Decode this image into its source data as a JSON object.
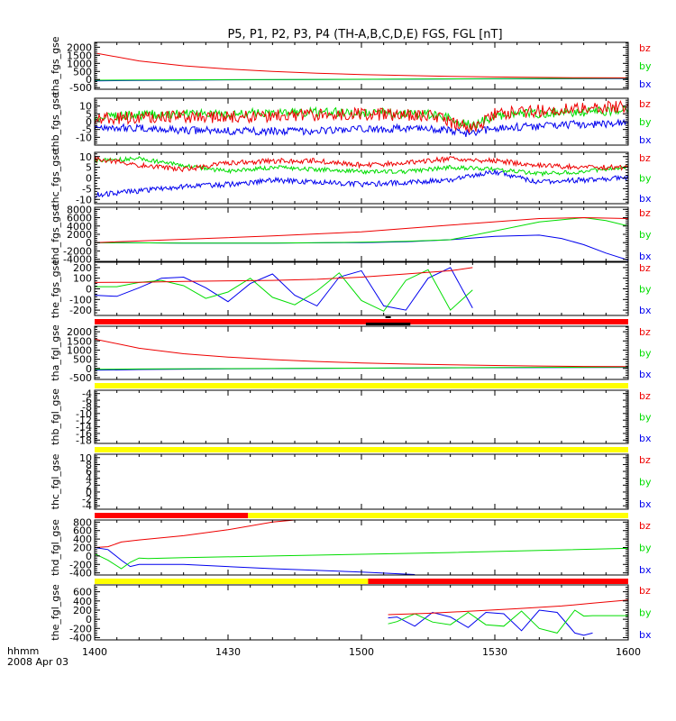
{
  "page": {
    "title": "P5, P1, P2, P3, P4 (TH-A,B,C,D,E) FGS, FGL [nT]",
    "time_axis_label": "hhmm",
    "date_label": "2008 Apr 03",
    "time_ticks": [
      "1400",
      "1430",
      "1500",
      "1530",
      "1600"
    ]
  },
  "colors": {
    "bx": "#0000ee",
    "by": "#00dd00",
    "bz": "#ee0000",
    "mode_red": "#ff0000",
    "mode_yellow": "#ffff00",
    "mode_black": "#000000",
    "axis": "#000000"
  },
  "chart_data": [
    {
      "type": "line",
      "ylabel": "tha_fgs_gse",
      "ylim": [
        -600,
        2300
      ],
      "yticks": [
        -500,
        0,
        500,
        1000,
        1500,
        2000
      ],
      "legend": [
        "bz",
        "by",
        "bx"
      ],
      "series": [
        {
          "name": "bz",
          "color": "bz",
          "x": [
            0,
            10,
            20,
            30,
            40,
            50,
            60,
            70,
            80,
            90,
            100,
            110,
            120
          ],
          "y": [
            1650,
            1150,
            850,
            650,
            500,
            390,
            310,
            250,
            200,
            160,
            130,
            110,
            100
          ]
        },
        {
          "name": "by",
          "color": "by",
          "x": [
            0,
            10,
            30,
            50,
            70,
            90,
            120
          ],
          "y": [
            -40,
            -30,
            -10,
            10,
            30,
            50,
            80
          ]
        },
        {
          "name": "bx",
          "color": "bx",
          "x": [
            0,
            10,
            30,
            50,
            70,
            90,
            120
          ],
          "y": [
            -80,
            -60,
            -20,
            0,
            20,
            40,
            60
          ]
        }
      ]
    },
    {
      "type": "line",
      "ylabel": "thb_fgs_gse",
      "ylim": [
        -15,
        15
      ],
      "yticks": [
        -10,
        -5,
        0,
        5,
        10
      ],
      "legend": [
        "bz",
        "by",
        "bx"
      ],
      "series": [
        {
          "name": "bz",
          "color": "bz",
          "x": [
            0,
            15,
            30,
            45,
            60,
            75,
            80,
            85,
            90,
            105,
            120
          ],
          "y": [
            2,
            3,
            3,
            4,
            5,
            4,
            0,
            -5,
            5,
            8,
            10
          ],
          "noise": 4
        },
        {
          "name": "by",
          "color": "by",
          "x": [
            0,
            15,
            30,
            45,
            60,
            75,
            80,
            85,
            90,
            105,
            120
          ],
          "y": [
            3,
            5,
            5,
            6,
            6,
            5,
            2,
            -3,
            4,
            6,
            7
          ],
          "noise": 3
        },
        {
          "name": "bx",
          "color": "bx",
          "x": [
            0,
            15,
            30,
            45,
            60,
            75,
            80,
            85,
            90,
            105,
            120
          ],
          "y": [
            -3,
            -5,
            -6,
            -6,
            -5,
            -4,
            -6,
            -8,
            -4,
            -2,
            -1
          ],
          "noise": 2.5
        }
      ]
    },
    {
      "type": "line",
      "ylabel": "thc_fgs_gse",
      "ylim": [
        -12,
        12
      ],
      "yticks": [
        -10,
        -5,
        0,
        5,
        10
      ],
      "legend": [
        "bz",
        "by",
        "bx"
      ],
      "series": [
        {
          "name": "bz",
          "color": "bz",
          "x": [
            0,
            10,
            20,
            30,
            40,
            50,
            60,
            70,
            80,
            90,
            100,
            110,
            120
          ],
          "y": [
            9,
            6,
            4,
            7,
            8,
            8,
            6,
            7,
            9,
            8,
            6,
            5,
            5
          ],
          "noise": 1.2
        },
        {
          "name": "by",
          "color": "by",
          "x": [
            0,
            10,
            20,
            30,
            40,
            50,
            60,
            70,
            80,
            90,
            100,
            110,
            120
          ],
          "y": [
            8,
            9,
            6,
            3,
            5,
            4,
            3,
            3,
            5,
            4,
            2,
            3,
            5
          ],
          "noise": 1
        },
        {
          "name": "bx",
          "color": "bx",
          "x": [
            0,
            10,
            20,
            30,
            40,
            50,
            60,
            70,
            80,
            90,
            100,
            110,
            120
          ],
          "y": [
            -8,
            -6,
            -4,
            -3,
            -1,
            -2,
            -3,
            -2,
            -1,
            3,
            -2,
            -1,
            0
          ],
          "noise": 1.2
        }
      ]
    },
    {
      "type": "line",
      "ylabel": "thd_fgs_gse",
      "ylim": [
        -4500,
        8500
      ],
      "yticks": [
        -4000,
        -2000,
        0,
        2000,
        4000,
        6000,
        8000
      ],
      "legend": [
        "bz",
        "by",
        "bx"
      ],
      "series": [
        {
          "name": "bz",
          "color": "bz",
          "x": [
            0,
            20,
            40,
            60,
            80,
            100,
            110,
            120
          ],
          "y": [
            0,
            800,
            1600,
            2600,
            4200,
            5800,
            6000,
            5800
          ]
        },
        {
          "name": "by",
          "color": "by",
          "x": [
            0,
            20,
            40,
            60,
            70,
            80,
            90,
            100,
            110,
            115,
            120
          ],
          "y": [
            0,
            -100,
            -100,
            100,
            300,
            700,
            2800,
            5000,
            6000,
            5300,
            4000
          ]
        },
        {
          "name": "bx",
          "color": "bx",
          "x": [
            0,
            20,
            40,
            60,
            70,
            80,
            90,
            100,
            105,
            110,
            115,
            120
          ],
          "y": [
            0,
            -100,
            -100,
            0,
            200,
            700,
            1500,
            1800,
            1000,
            -500,
            -2500,
            -4200
          ]
        }
      ]
    },
    {
      "type": "line",
      "ylabel": "the_fgs_gse",
      "ylim": [
        -250,
        250
      ],
      "yticks": [
        -200,
        -100,
        0,
        100,
        200
      ],
      "legend": [
        "bz",
        "by",
        "bx"
      ],
      "series": [
        {
          "name": "bz",
          "color": "bz",
          "x": [
            0,
            10,
            20,
            30,
            40,
            50,
            60,
            70,
            80,
            85
          ],
          "y": [
            60,
            62,
            70,
            75,
            80,
            90,
            110,
            140,
            170,
            200
          ]
        },
        {
          "name": "by",
          "color": "by",
          "x": [
            0,
            5,
            10,
            15,
            20,
            25,
            30,
            35,
            40,
            45,
            50,
            55,
            60,
            65,
            70,
            75,
            80,
            85
          ],
          "y": [
            20,
            20,
            60,
            80,
            30,
            -90,
            -30,
            100,
            -80,
            -150,
            -20,
            150,
            -110,
            -210,
            80,
            180,
            -200,
            -10
          ]
        },
        {
          "name": "bx",
          "color": "bx",
          "x": [
            0,
            5,
            10,
            15,
            20,
            25,
            30,
            35,
            40,
            45,
            50,
            55,
            60,
            65,
            70,
            75,
            80,
            85
          ],
          "y": [
            -60,
            -70,
            10,
            100,
            110,
            10,
            -120,
            50,
            140,
            -60,
            -160,
            110,
            170,
            -160,
            -200,
            100,
            200,
            -180
          ]
        }
      ]
    },
    {
      "type": "line",
      "ylabel": "tha_fgl_gse",
      "ylim": [
        -600,
        2300
      ],
      "yticks": [
        -500,
        0,
        500,
        1000,
        1500,
        2000
      ],
      "legend": [
        "bz",
        "by",
        "bx"
      ],
      "series": [
        {
          "name": "bz",
          "color": "bz",
          "x": [
            0,
            10,
            20,
            30,
            40,
            50,
            60,
            70,
            80,
            90,
            100,
            110,
            120
          ],
          "y": [
            1600,
            1100,
            800,
            620,
            480,
            380,
            300,
            240,
            200,
            160,
            130,
            110,
            100
          ]
        },
        {
          "name": "by",
          "color": "by",
          "x": [
            0,
            10,
            30,
            50,
            70,
            90,
            120
          ],
          "y": [
            -50,
            -30,
            -10,
            10,
            30,
            50,
            80
          ]
        },
        {
          "name": "bx",
          "color": "bx",
          "x": [
            0,
            10,
            30,
            50,
            70,
            90,
            120
          ],
          "y": [
            -100,
            -60,
            -20,
            0,
            20,
            40,
            60
          ]
        }
      ]
    },
    {
      "type": "line",
      "ylabel": "thb_fgl_gse",
      "ylim": [
        -19,
        -3
      ],
      "yticks": [
        -18,
        -16,
        -14,
        -12,
        -10,
        -8,
        -6,
        -4
      ],
      "legend": [
        "bz",
        "by",
        "bx"
      ],
      "series": []
    },
    {
      "type": "line",
      "ylabel": "thc_fgl_gse",
      "ylim": [
        -5,
        11
      ],
      "yticks": [
        -4,
        -2,
        0,
        2,
        4,
        6,
        8,
        10
      ],
      "legend": [
        "bz",
        "by",
        "bx"
      ],
      "series": []
    },
    {
      "type": "line",
      "ylabel": "thd_fgl_gse",
      "ylim": [
        -450,
        850
      ],
      "yticks": [
        -400,
        -200,
        0,
        200,
        400,
        600,
        800
      ],
      "legend": [
        "bz",
        "by",
        "bx"
      ],
      "series": [
        {
          "name": "bz",
          "color": "bz",
          "x": [
            0,
            3,
            6,
            10,
            20,
            30,
            40,
            45
          ],
          "y": [
            200,
            220,
            330,
            380,
            480,
            620,
            800,
            850
          ]
        },
        {
          "name": "by",
          "color": "by",
          "x": [
            0,
            3,
            6,
            8,
            10,
            12,
            20,
            40,
            60,
            80,
            100,
            120
          ],
          "y": [
            50,
            -100,
            -300,
            -150,
            -50,
            -60,
            -40,
            0,
            40,
            80,
            130,
            180
          ]
        },
        {
          "name": "bx",
          "color": "bx",
          "x": [
            0,
            3,
            6,
            8,
            10,
            20,
            40,
            60,
            72
          ],
          "y": [
            200,
            150,
            -100,
            -250,
            -200,
            -200,
            -300,
            -380,
            -440
          ]
        }
      ]
    },
    {
      "type": "line",
      "ylabel": "the_fgl_gse",
      "ylim": [
        -450,
        750
      ],
      "yticks": [
        -400,
        -200,
        0,
        200,
        400,
        600
      ],
      "legend": [
        "bz",
        "by",
        "bx"
      ],
      "series": [
        {
          "name": "bz",
          "color": "bz",
          "x": [
            66,
            75,
            85,
            95,
            105,
            112,
            120
          ],
          "y": [
            100,
            130,
            180,
            230,
            290,
            350,
            420
          ]
        },
        {
          "name": "by",
          "color": "by",
          "x": [
            66,
            68,
            72,
            76,
            80,
            84,
            88,
            92,
            96,
            100,
            104,
            108,
            110,
            112,
            114,
            120
          ],
          "y": [
            -100,
            -50,
            120,
            -60,
            -120,
            150,
            -120,
            -150,
            180,
            -200,
            -300,
            200,
            70,
            80,
            80,
            80
          ]
        },
        {
          "name": "bx",
          "color": "bx",
          "x": [
            66,
            68,
            72,
            76,
            80,
            84,
            88,
            92,
            96,
            100,
            104,
            108,
            110,
            112
          ],
          "y": [
            30,
            50,
            -150,
            150,
            50,
            -180,
            150,
            120,
            -250,
            200,
            150,
            -300,
            -350,
            -300
          ]
        }
      ]
    }
  ],
  "mode_bars": [
    {
      "segments": [
        {
          "color": "mode_red",
          "from": 0,
          "to": 120
        },
        {
          "color": "mode_black",
          "from": 61,
          "to": 71,
          "offset": true
        }
      ],
      "dot": 66
    },
    {
      "segments": [
        {
          "color": "mode_yellow",
          "from": 0,
          "to": 120
        }
      ]
    },
    {
      "segments": [
        {
          "color": "mode_yellow",
          "from": 0,
          "to": 120
        }
      ]
    },
    {
      "segments": [
        {
          "color": "mode_red",
          "from": 0,
          "to": 34.5
        },
        {
          "color": "mode_yellow",
          "from": 34.5,
          "to": 120
        }
      ]
    },
    {
      "segments": [
        {
          "color": "mode_yellow",
          "from": 0,
          "to": 61.5
        },
        {
          "color": "mode_red",
          "from": 61.5,
          "to": 120
        }
      ]
    }
  ]
}
